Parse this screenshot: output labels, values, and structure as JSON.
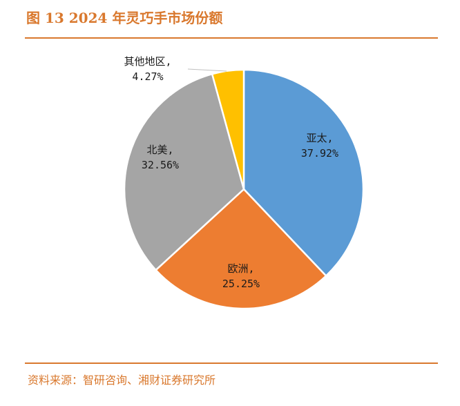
{
  "header": {
    "title": "图 13 2024 年灵巧手市场份额"
  },
  "footer": {
    "source": "资料来源：智研咨询、湘财证券研究所"
  },
  "chart_data": {
    "type": "pie",
    "title": "图 13 2024 年灵巧手市场份额",
    "slices": [
      {
        "name": "亚太",
        "value": 37.92,
        "label_name": "亚太,",
        "label_value": "37.92%",
        "color": "#5B9BD5"
      },
      {
        "name": "欧洲",
        "value": 25.25,
        "label_name": "欧洲,",
        "label_value": "25.25%",
        "color": "#ED7D31"
      },
      {
        "name": "北美",
        "value": 32.56,
        "label_name": "北美,",
        "label_value": "32.56%",
        "color": "#A5A5A5"
      },
      {
        "name": "其他地区",
        "value": 4.27,
        "label_name": "其他地区,",
        "label_value": "4.27%",
        "color": "#FFC000"
      }
    ]
  }
}
